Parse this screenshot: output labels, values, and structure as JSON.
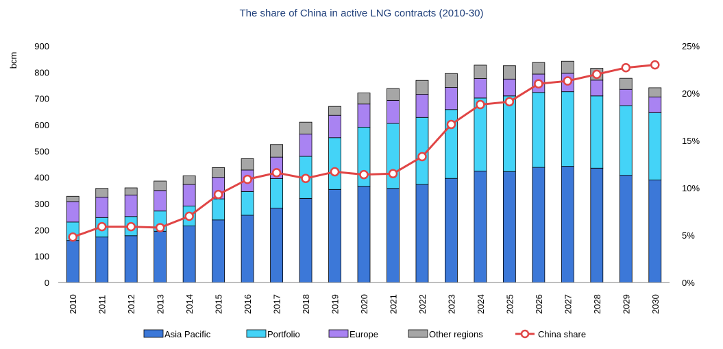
{
  "chart_data": {
    "type": "bar",
    "title": "The share of China in active LNG contracts (2010-30)",
    "ylabel": "bcm",
    "y2label": "",
    "ylim": [
      0,
      900
    ],
    "y_ticks": [
      "0",
      "100",
      "200",
      "300",
      "400",
      "500",
      "600",
      "700",
      "800",
      "900"
    ],
    "y2lim": [
      0,
      25
    ],
    "y2_ticks": [
      "0%",
      "5%",
      "10%",
      "15%",
      "20%",
      "25%"
    ],
    "legend_position": "bottom",
    "categories": [
      "2010",
      "2011",
      "2012",
      "2013",
      "2014",
      "2015",
      "2016",
      "2017",
      "2018",
      "2019",
      "2020",
      "2021",
      "2022",
      "2023",
      "2024",
      "2025",
      "2026",
      "2027",
      "2028",
      "2029",
      "2030"
    ],
    "series": [
      {
        "name": "Asia Pacific",
        "type": "bar",
        "color": "#3c78d8",
        "values": [
          160,
          173,
          178,
          195,
          215,
          238,
          256,
          283,
          320,
          354,
          366,
          358,
          373,
          396,
          424,
          422,
          438,
          442,
          435,
          408,
          390
        ]
      },
      {
        "name": "Portfolio",
        "type": "bar",
        "color": "#44d3f7",
        "values": [
          70,
          74,
          73,
          77,
          76,
          80,
          90,
          112,
          160,
          197,
          225,
          247,
          255,
          262,
          278,
          288,
          285,
          284,
          275,
          265,
          256
        ]
      },
      {
        "name": "Europe",
        "type": "bar",
        "color": "#a983f2",
        "values": [
          78,
          78,
          82,
          78,
          82,
          82,
          82,
          82,
          85,
          85,
          88,
          88,
          88,
          84,
          74,
          64,
          70,
          70,
          60,
          62,
          60
        ]
      },
      {
        "name": "Other regions",
        "type": "bar",
        "color": "#a6a6a6",
        "values": [
          20,
          33,
          27,
          36,
          33,
          37,
          43,
          48,
          45,
          34,
          42,
          45,
          53,
          53,
          51,
          51,
          44,
          46,
          45,
          42,
          35
        ]
      },
      {
        "name": "China share",
        "type": "line",
        "axis": "right",
        "color": "#e04545",
        "values": [
          4.8,
          5.9,
          5.9,
          5.8,
          7.0,
          9.3,
          10.9,
          11.6,
          11.0,
          11.7,
          11.4,
          11.5,
          13.3,
          16.7,
          18.8,
          19.1,
          21.0,
          21.3,
          22.0,
          22.7,
          23.0
        ]
      }
    ]
  }
}
